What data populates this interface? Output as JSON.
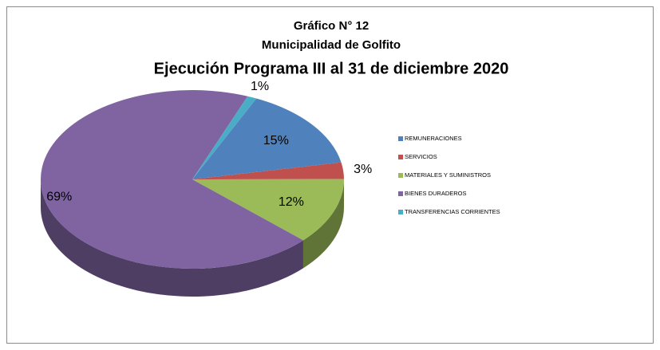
{
  "chart_data": {
    "type": "pie",
    "title_lines": [
      "Gráfico N° 12",
      "Municipalidad de Golfito",
      "Ejecución Programa III al 31 de diciembre 2020"
    ],
    "categories": [
      "REMUNERACIONES",
      "SERVICIOS",
      "MATERIALES Y SUMINISTROS",
      "BIENES DURADEROS",
      "TRANSFERENCIAS CORRIENTES"
    ],
    "values": [
      15,
      3,
      12,
      69,
      1
    ],
    "value_labels": [
      "15%",
      "3%",
      "12%",
      "69%",
      "1%"
    ],
    "colors": [
      "#4f81bd",
      "#c0504d",
      "#9bbb59",
      "#8064a2",
      "#4bacc6"
    ],
    "legend": "right"
  }
}
